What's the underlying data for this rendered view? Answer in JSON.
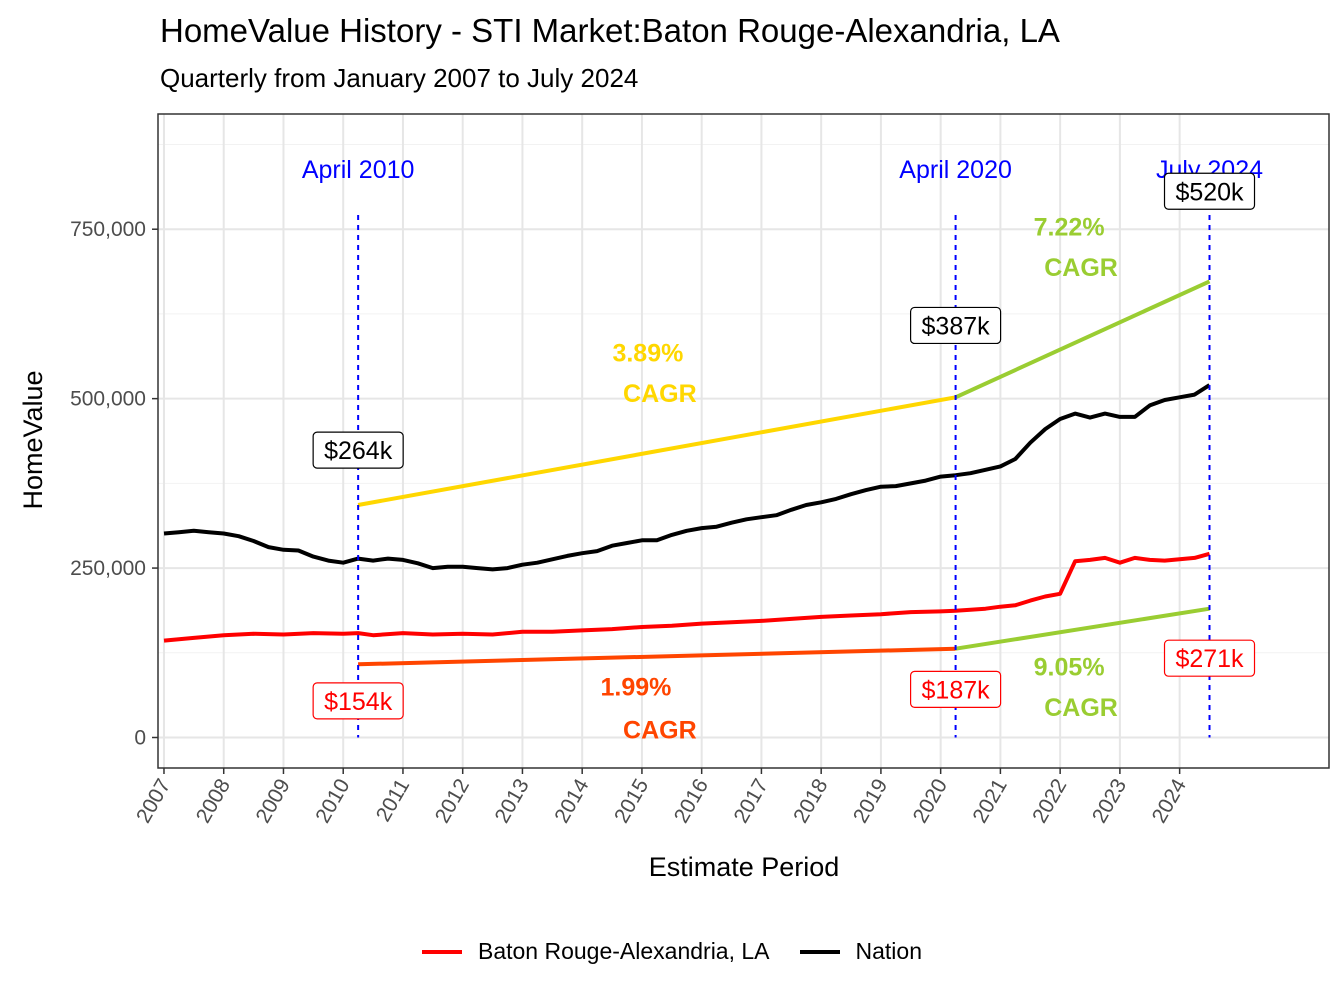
{
  "chart_data": {
    "type": "line",
    "title": "HomeValue History - STI Market:Baton Rouge-Alexandria, LA",
    "subtitle": "Quarterly from January 2007 to July 2024",
    "xlabel": "Estimate Period",
    "ylabel": "HomeValue",
    "xlim": [
      2006.9,
      2026.5
    ],
    "ylim": [
      -45000,
      920000
    ],
    "grid": true,
    "legend_position": "bottom",
    "x_ticks": [
      "2007",
      "2008",
      "2009",
      "2010",
      "2011",
      "2012",
      "2013",
      "2014",
      "2015",
      "2016",
      "2017",
      "2018",
      "2019",
      "2020",
      "2021",
      "2022",
      "2023",
      "2024"
    ],
    "y_ticks": [
      {
        "value": 0,
        "label": "0"
      },
      {
        "value": 250000,
        "label": "250,000"
      },
      {
        "value": 500000,
        "label": "500,000"
      },
      {
        "value": 750000,
        "label": "750,000"
      }
    ],
    "series": [
      {
        "name": "Baton Rouge-Alexandria, LA",
        "color": "#ff0000",
        "x": [
          2007.0,
          2007.5,
          2008.0,
          2008.5,
          2009.0,
          2009.5,
          2010.0,
          2010.25,
          2010.5,
          2011.0,
          2011.5,
          2012.0,
          2012.5,
          2013.0,
          2013.5,
          2014.0,
          2014.5,
          2015.0,
          2015.5,
          2016.0,
          2016.5,
          2017.0,
          2017.5,
          2018.0,
          2018.5,
          2019.0,
          2019.5,
          2020.0,
          2020.25,
          2020.75,
          2021.0,
          2021.25,
          2021.5,
          2021.75,
          2022.0,
          2022.25,
          2022.5,
          2022.75,
          2023.0,
          2023.25,
          2023.5,
          2023.75,
          2024.0,
          2024.25,
          2024.5
        ],
        "values": [
          143000,
          147000,
          151000,
          153000,
          152000,
          154000,
          153000,
          154000,
          151000,
          154000,
          152000,
          153000,
          152000,
          156000,
          156000,
          158000,
          160000,
          163000,
          165000,
          168000,
          170000,
          172000,
          175000,
          178000,
          180000,
          182000,
          185000,
          186000,
          187000,
          190000,
          193000,
          195000,
          202000,
          208000,
          212000,
          260000,
          262000,
          265000,
          258000,
          265000,
          262000,
          261000,
          263000,
          265000,
          271000
        ]
      },
      {
        "name": "Nation",
        "color": "#000000",
        "x": [
          2007.0,
          2007.25,
          2007.5,
          2007.75,
          2008.0,
          2008.25,
          2008.5,
          2008.75,
          2009.0,
          2009.25,
          2009.5,
          2009.75,
          2010.0,
          2010.25,
          2010.5,
          2010.75,
          2011.0,
          2011.25,
          2011.5,
          2011.75,
          2012.0,
          2012.25,
          2012.5,
          2012.75,
          2013.0,
          2013.25,
          2013.5,
          2013.75,
          2014.0,
          2014.25,
          2014.5,
          2014.75,
          2015.0,
          2015.25,
          2015.5,
          2015.75,
          2016.0,
          2016.25,
          2016.5,
          2016.75,
          2017.0,
          2017.25,
          2017.5,
          2017.75,
          2018.0,
          2018.25,
          2018.5,
          2018.75,
          2019.0,
          2019.25,
          2019.5,
          2019.75,
          2020.0,
          2020.25,
          2020.5,
          2020.75,
          2021.0,
          2021.25,
          2021.5,
          2021.75,
          2022.0,
          2022.25,
          2022.5,
          2022.75,
          2023.0,
          2023.25,
          2023.5,
          2023.75,
          2024.0,
          2024.25,
          2024.5
        ],
        "values": [
          301000,
          303000,
          305000,
          303000,
          301000,
          297000,
          290000,
          281000,
          277000,
          276000,
          267000,
          261000,
          258000,
          264000,
          261000,
          264000,
          262000,
          257000,
          250000,
          252000,
          252000,
          250000,
          248000,
          250000,
          255000,
          258000,
          263000,
          268000,
          272000,
          275000,
          283000,
          287000,
          291000,
          291000,
          299000,
          305000,
          309000,
          311000,
          317000,
          322000,
          325000,
          328000,
          336000,
          343000,
          347000,
          352000,
          359000,
          365000,
          370000,
          371000,
          375000,
          379000,
          385000,
          387000,
          390000,
          395000,
          400000,
          411000,
          435000,
          455000,
          470000,
          478000,
          472000,
          478000,
          473000,
          473000,
          490000,
          498000,
          502000,
          506000,
          520000
        ]
      },
      {
        "name": "",
        "color": "#ffd700",
        "x": [
          2010.25,
          2020.25
        ],
        "values": [
          343000,
          502000
        ]
      },
      {
        "name": "",
        "color": "#9acd32",
        "x": [
          2020.25,
          2024.5
        ],
        "values": [
          502000,
          673000
        ]
      },
      {
        "name": "",
        "color": "#ff4500",
        "x": [
          2010.25,
          2020.25
        ],
        "values": [
          108000,
          131000
        ]
      },
      {
        "name": "",
        "color": "#9acd32",
        "x": [
          2020.25,
          2024.5
        ],
        "values": [
          131000,
          190000
        ]
      }
    ],
    "vlines": [
      {
        "x": 2010.25,
        "label": "April 2010"
      },
      {
        "x": 2020.25,
        "label": "April 2020"
      },
      {
        "x": 2024.5,
        "label": "July 2024"
      }
    ],
    "annotations": [
      {
        "text": "3.89%",
        "x": 2015.1,
        "y": 568000,
        "color": "#ffd700"
      },
      {
        "text": "CAGR",
        "x": 2015.3,
        "y": 508000,
        "color": "#ffd700"
      },
      {
        "text": "7.22%",
        "x": 2022.15,
        "y": 754000,
        "color": "#9acd32"
      },
      {
        "text": "CAGR",
        "x": 2022.35,
        "y": 694000,
        "color": "#9acd32"
      },
      {
        "text": "1.99%",
        "x": 2014.9,
        "y": 75000,
        "color": "#ff4500"
      },
      {
        "text": "CAGR",
        "x": 2015.3,
        "y": 12000,
        "color": "#ff4500"
      },
      {
        "text": "9.05%",
        "x": 2022.15,
        "y": 105000,
        "color": "#9acd32"
      },
      {
        "text": "CAGR",
        "x": 2022.35,
        "y": 45000,
        "color": "#9acd32"
      }
    ],
    "value_labels": [
      {
        "text": "$264k",
        "x": 2010.25,
        "y": 424000,
        "color": "#000000"
      },
      {
        "text": "$387k",
        "x": 2020.25,
        "y": 608000,
        "color": "#000000"
      },
      {
        "text": "$520k",
        "x": 2024.5,
        "y": 806000,
        "color": "#000000"
      },
      {
        "text": "$154k",
        "x": 2010.25,
        "y": 54000,
        "color": "#ff0000"
      },
      {
        "text": "$187k",
        "x": 2020.25,
        "y": 71000,
        "color": "#ff0000"
      },
      {
        "text": "$271k",
        "x": 2024.5,
        "y": 117000,
        "color": "#ff0000"
      }
    ]
  },
  "legend": {
    "items": [
      {
        "label": "Baton Rouge-Alexandria, LA",
        "color": "#ff0000"
      },
      {
        "label": "Nation",
        "color": "#000000"
      }
    ]
  }
}
